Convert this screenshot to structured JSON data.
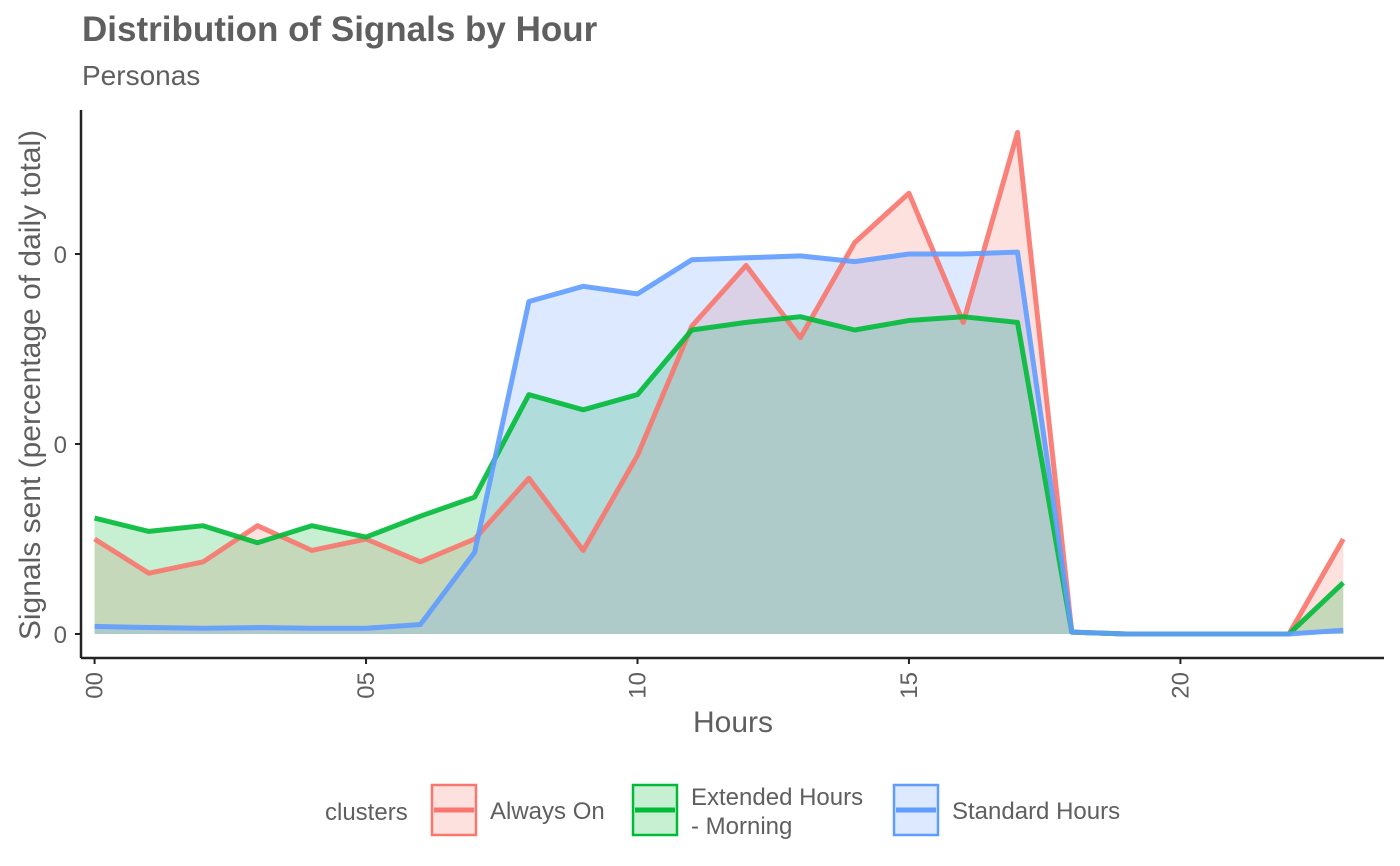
{
  "chart_data": {
    "type": "area",
    "title": "Distribution of Signals by Hour",
    "subtitle": "Personas",
    "xlabel": "Hours",
    "ylabel": "Signals sent (percentage of daily total)",
    "x": [
      0,
      1,
      2,
      3,
      4,
      5,
      6,
      7,
      8,
      9,
      10,
      11,
      12,
      13,
      14,
      15,
      16,
      17,
      18,
      19,
      20,
      21,
      22,
      23
    ],
    "xlim": [
      -0.25,
      23.75
    ],
    "x_ticks": [
      0,
      5,
      10,
      15,
      20
    ],
    "x_tick_labels": [
      "00",
      "05",
      "10",
      "15",
      "20"
    ],
    "ylim": [
      -0.125,
      1.0
    ],
    "y_ticks": [
      0,
      0.5,
      1.0
    ],
    "y_tick_labels": [
      "0",
      "0",
      "0"
    ],
    "grid": false,
    "legend_position": "bottom",
    "legend_title": "clusters",
    "series": [
      {
        "name": "Always On",
        "color": "#F8766D",
        "values": [
          0.25,
          0.16,
          0.19,
          0.285,
          0.22,
          0.25,
          0.19,
          0.25,
          0.41,
          0.22,
          0.47,
          0.81,
          0.97,
          0.78,
          1.03,
          1.16,
          0.82,
          1.32,
          0.005,
          0,
          0,
          0,
          0,
          0.25
        ]
      },
      {
        "name": "Extended Hours\n- Morning",
        "color": "#00BA38",
        "values": [
          0.305,
          0.27,
          0.285,
          0.24,
          0.285,
          0.255,
          0.31,
          0.36,
          0.63,
          0.59,
          0.63,
          0.8,
          0.82,
          0.835,
          0.8,
          0.825,
          0.835,
          0.82,
          0.005,
          0,
          0,
          0,
          0,
          0.135
        ]
      },
      {
        "name": "Standard Hours",
        "color": "#619CFF",
        "values": [
          0.02,
          0.017,
          0.015,
          0.017,
          0.015,
          0.015,
          0.025,
          0.215,
          0.875,
          0.915,
          0.895,
          0.985,
          0.99,
          0.995,
          0.98,
          1.0,
          1.0,
          1.005,
          0.005,
          0,
          0,
          0,
          0,
          0.01
        ]
      }
    ]
  }
}
